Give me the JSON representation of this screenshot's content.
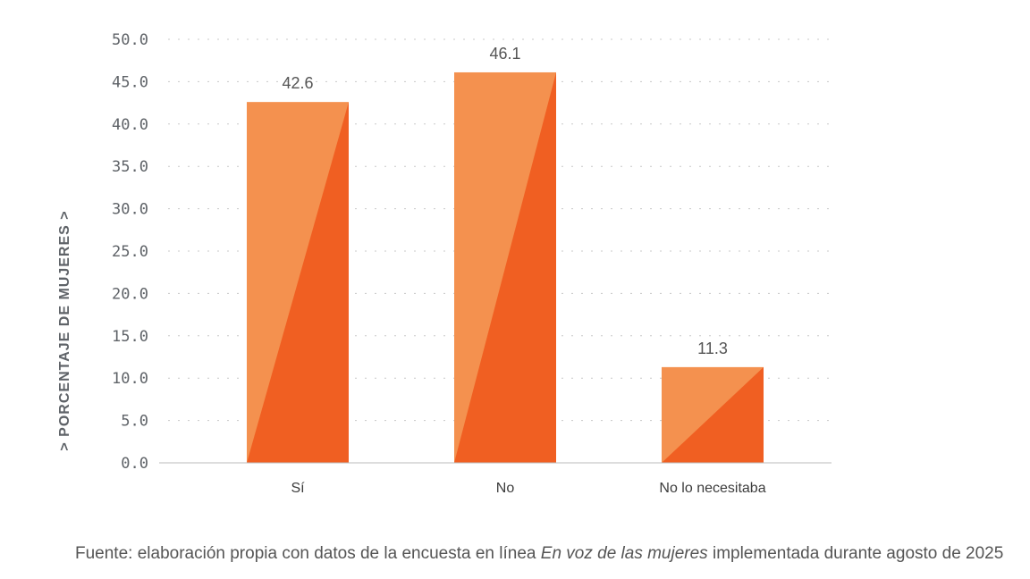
{
  "chart_data": {
    "type": "bar",
    "categories": [
      "Sí",
      "No",
      "No lo necesitaba"
    ],
    "values": [
      42.6,
      46.1,
      11.3
    ],
    "data_labels": [
      "42.6",
      "46.1",
      "11.3"
    ],
    "ylabel": "> PORCENTAJE DE MUJERES >",
    "xlabel": "",
    "ylim": [
      0,
      50
    ],
    "yticks": [
      "0.0",
      "5.0",
      "10.0",
      "15.0",
      "20.0",
      "25.0",
      "30.0",
      "35.0",
      "40.0",
      "45.0",
      "50.0"
    ],
    "grid": "horizontal dotted",
    "colors": {
      "bar_light": "#F4914F",
      "bar_dark": "#F05F22"
    }
  },
  "source": {
    "prefix": "Fuente: elaboración propia con datos de la encuesta en línea ",
    "italic": "En voz de las mujeres",
    "suffix": " implementada durante agosto de 2025"
  }
}
